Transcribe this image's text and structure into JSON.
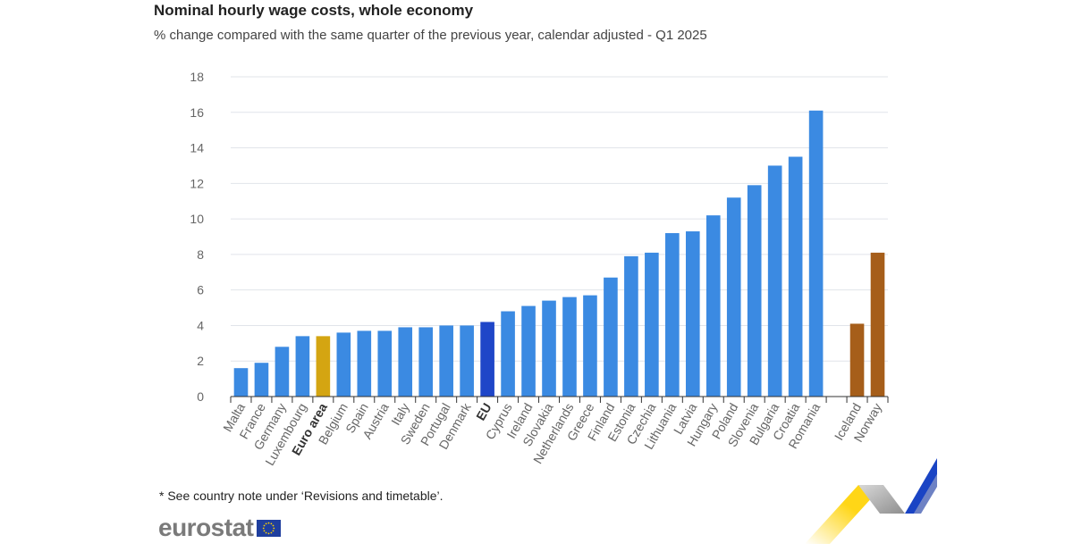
{
  "header": {
    "title": "Nominal hourly wage costs, whole economy",
    "subtitle": "% change compared with the same quarter of the previous year, calendar adjusted - Q1 2025"
  },
  "footer": {
    "note": "* See country note under ‘Revisions and timetable’.",
    "logo_text": "eurostat"
  },
  "colors": {
    "country": "#3b8ae2",
    "euro_area": "#d4a512",
    "eu": "#1f46c8",
    "efta": "#a65e1a",
    "axis_text": "#666666",
    "grid": "#e1e4ea"
  },
  "chart_data": {
    "type": "bar",
    "title": "Nominal hourly wage costs, whole economy",
    "subtitle": "% change compared with the same quarter of the previous year, calendar adjusted - Q1 2025",
    "xlabel": "",
    "ylabel": "",
    "ylim": [
      0,
      18
    ],
    "yticks": [
      0,
      2,
      4,
      6,
      8,
      10,
      12,
      14,
      16,
      18
    ],
    "grid": true,
    "categories": [
      "Malta",
      "France",
      "Germany",
      "Luxembourg",
      "Euro area",
      "Belgium",
      "Spain",
      "Austria",
      "Italy",
      "Sweden",
      "Portugal",
      "Denmark",
      "EU",
      "Cyprus",
      "Ireland",
      "Slovakia",
      "Netherlands",
      "Greece",
      "Finland",
      "Estonia",
      "Czechia",
      "Lithuania",
      "Latvia",
      "Hungary",
      "Poland",
      "Slovenia",
      "Bulgaria",
      "Croatia",
      "Romania",
      "",
      "Iceland",
      "Norway"
    ],
    "values": [
      1.6,
      1.9,
      2.8,
      3.4,
      3.4,
      3.6,
      3.7,
      3.7,
      3.9,
      3.9,
      4.0,
      4.0,
      4.2,
      4.8,
      5.1,
      5.4,
      5.6,
      5.7,
      6.7,
      7.9,
      8.1,
      9.2,
      9.3,
      10.2,
      11.2,
      11.9,
      13.0,
      13.5,
      16.1,
      null,
      4.1,
      8.1
    ],
    "groups": [
      "country",
      "country",
      "country",
      "country",
      "euro_area",
      "country",
      "country",
      "country",
      "country",
      "country",
      "country",
      "country",
      "eu",
      "country",
      "country",
      "country",
      "country",
      "country",
      "country",
      "country",
      "country",
      "country",
      "country",
      "country",
      "country",
      "country",
      "country",
      "country",
      "country",
      "gap",
      "efta",
      "efta"
    ],
    "bold_labels": [
      "Euro area",
      "EU"
    ]
  }
}
